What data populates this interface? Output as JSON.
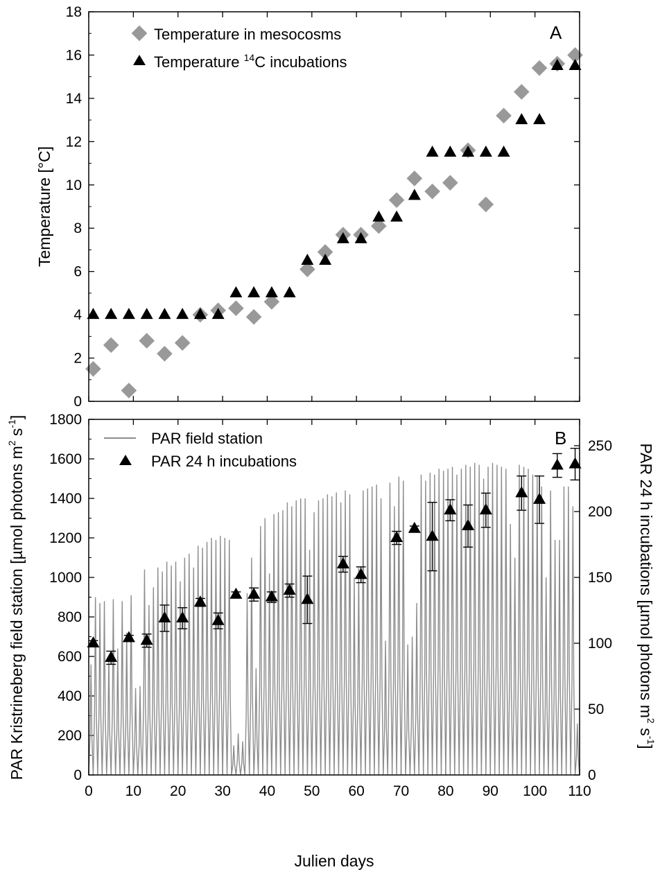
{
  "chart_data": [
    {
      "type": "scatter",
      "panel_label": "A",
      "ylabel": "Temperature [°C]",
      "xlim": [
        0,
        110
      ],
      "ylim": [
        0,
        18
      ],
      "x_ticks": [
        0,
        10,
        20,
        30,
        40,
        50,
        60,
        70,
        80,
        90,
        100,
        110
      ],
      "y_ticks": [
        0,
        2,
        4,
        6,
        8,
        10,
        12,
        14,
        16,
        18
      ],
      "legend_position": "top-left",
      "series": [
        {
          "name": "Temperature in mesocosms",
          "marker": "diamond",
          "color": "#999999",
          "x": [
            1,
            5,
            9,
            13,
            17,
            21,
            25,
            29,
            33,
            37,
            41,
            49,
            53,
            57,
            61,
            65,
            69,
            73,
            77,
            81,
            85,
            89,
            93,
            97,
            101,
            105,
            109
          ],
          "y": [
            1.5,
            2.6,
            0.5,
            2.8,
            2.2,
            2.7,
            4.0,
            4.2,
            4.3,
            3.9,
            4.6,
            6.1,
            6.9,
            7.7,
            7.7,
            8.1,
            9.3,
            10.3,
            9.7,
            10.1,
            11.6,
            9.1,
            13.2,
            14.3,
            15.4,
            15.6,
            16.0
          ]
        },
        {
          "name_prefix": "Temperature ",
          "name_sup": "14",
          "name_suffix": "C incubations",
          "marker": "triangle",
          "color": "#000000",
          "x": [
            1,
            5,
            9,
            13,
            17,
            21,
            25,
            29,
            33,
            37,
            41,
            45,
            49,
            53,
            57,
            61,
            65,
            69,
            73,
            77,
            81,
            85,
            89,
            93,
            97,
            101,
            105,
            109
          ],
          "y": [
            4.0,
            4.0,
            4.0,
            4.0,
            4.0,
            4.0,
            4.0,
            4.0,
            5.0,
            5.0,
            5.0,
            5.0,
            6.5,
            6.5,
            7.5,
            7.5,
            8.5,
            8.5,
            9.5,
            11.5,
            11.5,
            11.5,
            11.5,
            11.5,
            13.0,
            13.0,
            15.5,
            15.5
          ]
        }
      ]
    },
    {
      "type": "line",
      "panel_label": "B",
      "xlabel": "Julien days",
      "ylabel_left": {
        "prefix": "PAR Kristrineberg field station [µmol photons m",
        "sup1": "2",
        "mid": " s",
        "sup2": "-1",
        "suffix": "]"
      },
      "ylabel_right": {
        "prefix": "PAR 24 h incubations [µmol photons m",
        "sup1": "2",
        "mid": " s",
        "sup2": "-1",
        "suffix": "]"
      },
      "xlim": [
        0,
        110
      ],
      "ylim_left": [
        0,
        1800
      ],
      "ylim_right": [
        0,
        270
      ],
      "x_ticks": [
        0,
        10,
        20,
        30,
        40,
        50,
        60,
        70,
        80,
        90,
        100,
        110
      ],
      "y_ticks_left": [
        0,
        200,
        400,
        600,
        800,
        1000,
        1200,
        1400,
        1600,
        1800
      ],
      "y_ticks_right": [
        0,
        50,
        100,
        150,
        200,
        250
      ],
      "legend_position": "top-left",
      "series": [
        {
          "name": "PAR field station",
          "kind": "daily-cycle",
          "axis": "left",
          "color": "#8c8c8c",
          "days": [
            0,
            1,
            2,
            3,
            4,
            5,
            6,
            7,
            8,
            9,
            10,
            11,
            12,
            13,
            14,
            15,
            16,
            17,
            18,
            19,
            20,
            21,
            22,
            23,
            24,
            25,
            26,
            27,
            28,
            29,
            30,
            31,
            32,
            33,
            34,
            35,
            36,
            37,
            38,
            39,
            40,
            41,
            42,
            43,
            44,
            45,
            46,
            47,
            48,
            49,
            50,
            51,
            52,
            53,
            54,
            55,
            56,
            57,
            58,
            59,
            60,
            61,
            62,
            63,
            64,
            65,
            66,
            67,
            68,
            69,
            70,
            71,
            72,
            73,
            74,
            75,
            76,
            77,
            78,
            79,
            80,
            81,
            82,
            83,
            84,
            85,
            86,
            87,
            88,
            89,
            90,
            91,
            92,
            93,
            94,
            95,
            96,
            97,
            98,
            99,
            100,
            101,
            102,
            103,
            104,
            105,
            106,
            107,
            108,
            109
          ],
          "daily_max": [
            560,
            900,
            870,
            880,
            600,
            890,
            640,
            880,
            720,
            910,
            440,
            450,
            1040,
            860,
            950,
            1050,
            1030,
            1080,
            1060,
            1080,
            980,
            1100,
            1120,
            1050,
            1160,
            1150,
            1180,
            1200,
            1190,
            1210,
            1200,
            1190,
            150,
            210,
            170,
            920,
            1100,
            540,
            1260,
            1300,
            1020,
            1320,
            1330,
            1340,
            1380,
            1360,
            1390,
            1400,
            1400,
            1140,
            1330,
            1390,
            1400,
            1420,
            1410,
            1430,
            1380,
            1440,
            1420,
            1000,
            1050,
            1440,
            1450,
            1460,
            1470,
            1400,
            680,
            1480,
            1360,
            1510,
            1490,
            660,
            700,
            870,
            1520,
            1490,
            1530,
            1520,
            1550,
            1540,
            1550,
            1560,
            1520,
            1550,
            1570,
            1560,
            1580,
            1570,
            1500,
            1560,
            1580,
            1570,
            1560,
            1550,
            1270,
            1100,
            1570,
            1560,
            1550,
            1520,
            1510,
            1460,
            1000,
            1440,
            1190,
            1190,
            1460,
            1460,
            1360,
            260
          ]
        },
        {
          "name": "PAR 24 h incubations",
          "axis": "right",
          "marker": "triangle",
          "color": "#000000",
          "x": [
            1,
            5,
            9,
            13,
            17,
            21,
            25,
            29,
            33,
            37,
            41,
            45,
            49,
            57,
            61,
            69,
            73,
            77,
            81,
            85,
            89,
            97,
            101,
            105,
            109
          ],
          "y": [
            100,
            89,
            104,
            102,
            119,
            119,
            131,
            117,
            137,
            137,
            135,
            140,
            133,
            160,
            152,
            180,
            187,
            181,
            201,
            189,
            201,
            214,
            209,
            235,
            236
          ],
          "err": [
            2,
            5,
            2,
            5,
            10,
            8,
            3,
            6,
            2,
            5,
            4,
            5,
            18,
            6,
            6,
            5,
            2,
            26,
            8,
            16,
            13,
            13,
            18,
            9,
            12
          ]
        }
      ]
    }
  ]
}
